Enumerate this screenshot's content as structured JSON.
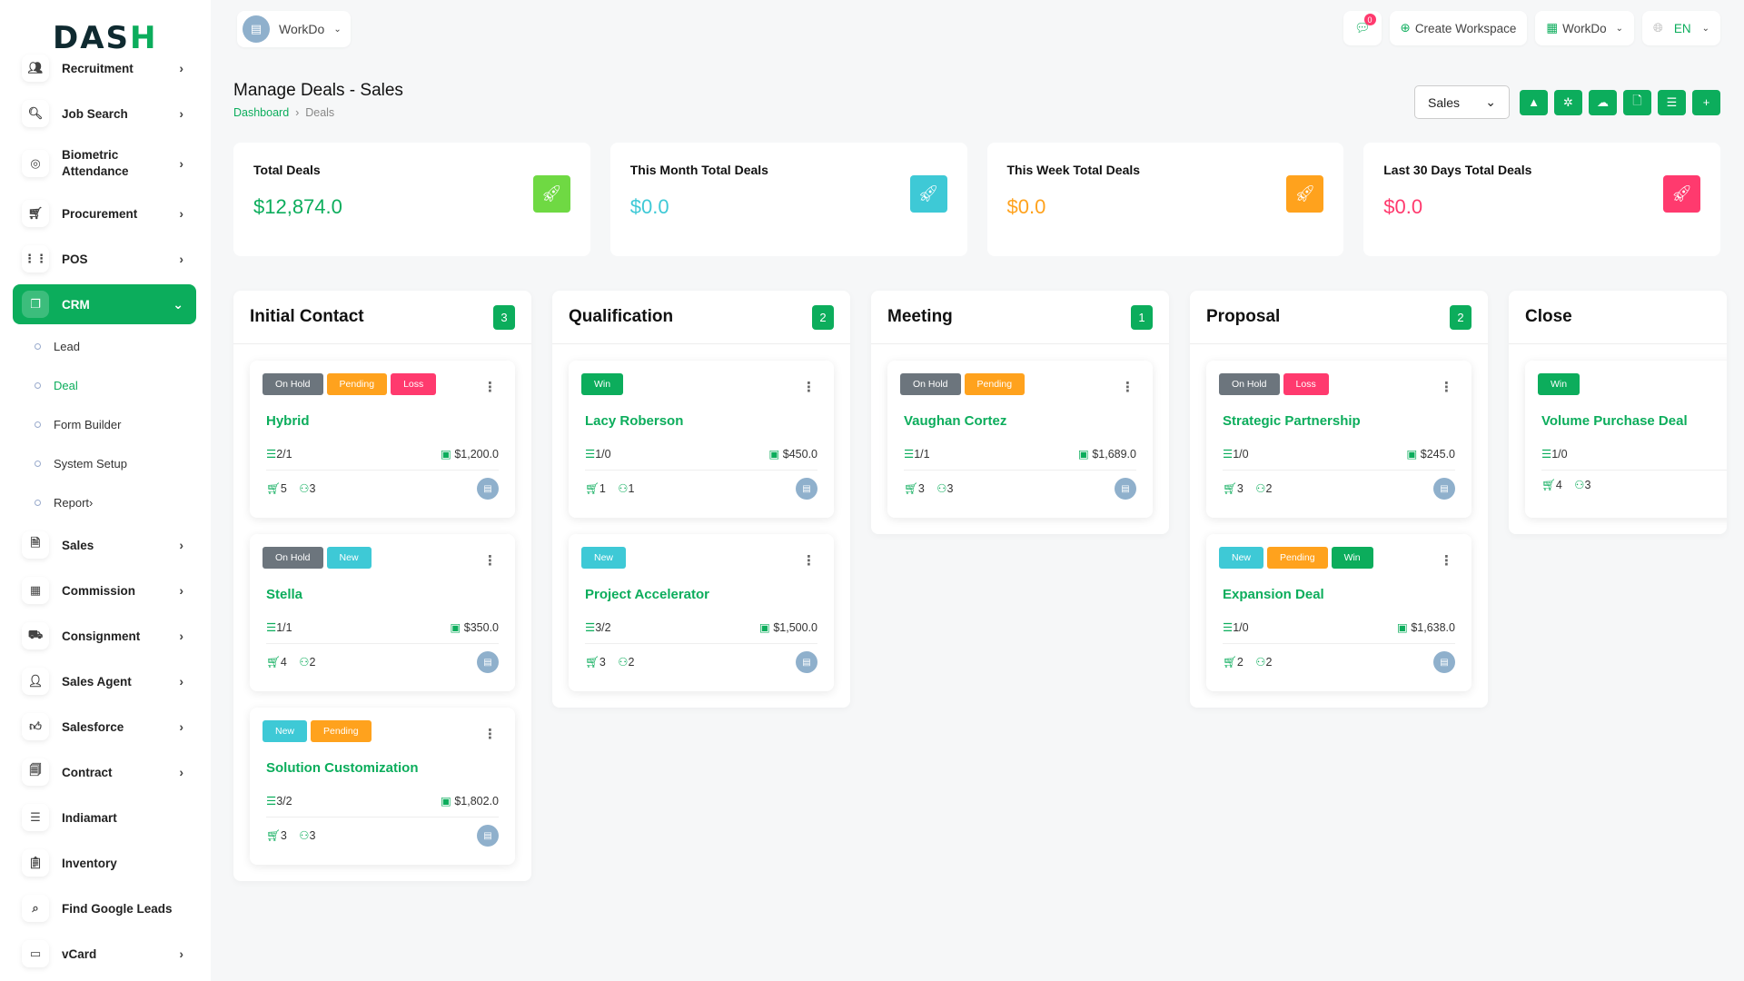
{
  "logo": {
    "text": "DASH"
  },
  "sidebar": {
    "items": [
      {
        "label": "Recruitment",
        "icon": "users-plus-icon",
        "chev": true
      },
      {
        "label": "Job Search",
        "icon": "file-search-icon",
        "chev": true
      },
      {
        "label": "Biometric Attendance",
        "icon": "fingerprint-icon",
        "chev": true
      },
      {
        "label": "Procurement",
        "icon": "cart-icon",
        "chev": true
      },
      {
        "label": "POS",
        "icon": "grid-icon",
        "chev": true
      },
      {
        "label": "CRM",
        "icon": "layers-icon",
        "chev": true,
        "active": true
      },
      {
        "label": "Sales",
        "icon": "file-icon",
        "chev": true
      },
      {
        "label": "Commission",
        "icon": "calculator-icon",
        "chev": true
      },
      {
        "label": "Consignment",
        "icon": "truck-icon",
        "chev": true
      },
      {
        "label": "Sales Agent",
        "icon": "user-check-icon",
        "chev": true
      },
      {
        "label": "Salesforce",
        "icon": "thumb-up-icon",
        "chev": true
      },
      {
        "label": "Contract",
        "icon": "contract-icon",
        "chev": true
      },
      {
        "label": "Indiamart",
        "icon": "indent-icon",
        "chev": false
      },
      {
        "label": "Inventory",
        "icon": "clipboard-icon",
        "chev": false
      },
      {
        "label": "Find Google Leads",
        "icon": "search-icon",
        "chev": false
      },
      {
        "label": "vCard",
        "icon": "id-card-icon",
        "chev": true
      }
    ],
    "crm_sub": [
      {
        "label": "Lead"
      },
      {
        "label": "Deal",
        "current": true
      },
      {
        "label": "Form Builder"
      },
      {
        "label": "System Setup"
      },
      {
        "label": "Report",
        "chev": true
      }
    ]
  },
  "topbar": {
    "workspace": "WorkDo",
    "notifications": "0",
    "create_workspace": "Create Workspace",
    "workspace_menu": "WorkDo",
    "language": "EN"
  },
  "page": {
    "title": "Manage Deals - Sales",
    "breadcrumb": [
      "Dashboard",
      "Deals"
    ],
    "pipeline_select": "Sales",
    "action_icons": [
      "google-drive-icon",
      "hubspot-icon",
      "onedrive-icon",
      "file-import-icon",
      "list-icon",
      "plus-icon"
    ]
  },
  "stats": [
    {
      "label": "Total Deals",
      "value": "$12,874.0",
      "color": "#0cad5c",
      "icon_bg": "#6fd943"
    },
    {
      "label": "This Month Total Deals",
      "value": "$0.0",
      "color": "#3ec9d6",
      "icon_bg": "#3ec9d6"
    },
    {
      "label": "This Week Total Deals",
      "value": "$0.0",
      "color": "#ffa21d",
      "icon_bg": "#ffa21d"
    },
    {
      "label": "Last 30 Days Total Deals",
      "value": "$0.0",
      "color": "#ff3a6e",
      "icon_bg": "#ff3a6e"
    }
  ],
  "tag_colors": {
    "On Hold": "#6c757d",
    "Pending": "#ffa21d",
    "Loss": "#ff3a6e",
    "Win": "#0cad5c",
    "New": "#3ec9d6"
  },
  "columns": [
    {
      "name": "Initial Contact",
      "count": "3",
      "deals": [
        {
          "tags": [
            "On Hold",
            "Pending",
            "Loss"
          ],
          "name": "Hybrid",
          "tasks": "2/1",
          "price": "$1,200.0",
          "products": "5",
          "sources": "3"
        },
        {
          "tags": [
            "On Hold",
            "New"
          ],
          "name": "Stella",
          "tasks": "1/1",
          "price": "$350.0",
          "products": "4",
          "sources": "2"
        },
        {
          "tags": [
            "New",
            "Pending"
          ],
          "name": "Solution Customization",
          "tasks": "3/2",
          "price": "$1,802.0",
          "products": "3",
          "sources": "3"
        }
      ]
    },
    {
      "name": "Qualification",
      "count": "2",
      "deals": [
        {
          "tags": [
            "Win"
          ],
          "name": "Lacy Roberson",
          "tasks": "1/0",
          "price": "$450.0",
          "products": "1",
          "sources": "1"
        },
        {
          "tags": [
            "New"
          ],
          "name": "Project Accelerator",
          "tasks": "3/2",
          "price": "$1,500.0",
          "products": "3",
          "sources": "2"
        }
      ]
    },
    {
      "name": "Meeting",
      "count": "1",
      "deals": [
        {
          "tags": [
            "On Hold",
            "Pending"
          ],
          "name": "Vaughan Cortez",
          "tasks": "1/1",
          "price": "$1,689.0",
          "products": "3",
          "sources": "3"
        }
      ]
    },
    {
      "name": "Proposal",
      "count": "2",
      "deals": [
        {
          "tags": [
            "On Hold",
            "Loss"
          ],
          "name": "Strategic Partnership",
          "tasks": "1/0",
          "price": "$245.0",
          "products": "3",
          "sources": "2"
        },
        {
          "tags": [
            "New",
            "Pending",
            "Win"
          ],
          "name": "Expansion Deal",
          "tasks": "1/0",
          "price": "$1,638.0",
          "products": "2",
          "sources": "2"
        }
      ]
    },
    {
      "name": "Close",
      "count": "",
      "deals": [
        {
          "tags": [
            "Win"
          ],
          "name": "Volume Purchase Deal",
          "tasks": "1/0",
          "price": "",
          "products": "4",
          "sources": "3"
        }
      ]
    }
  ]
}
